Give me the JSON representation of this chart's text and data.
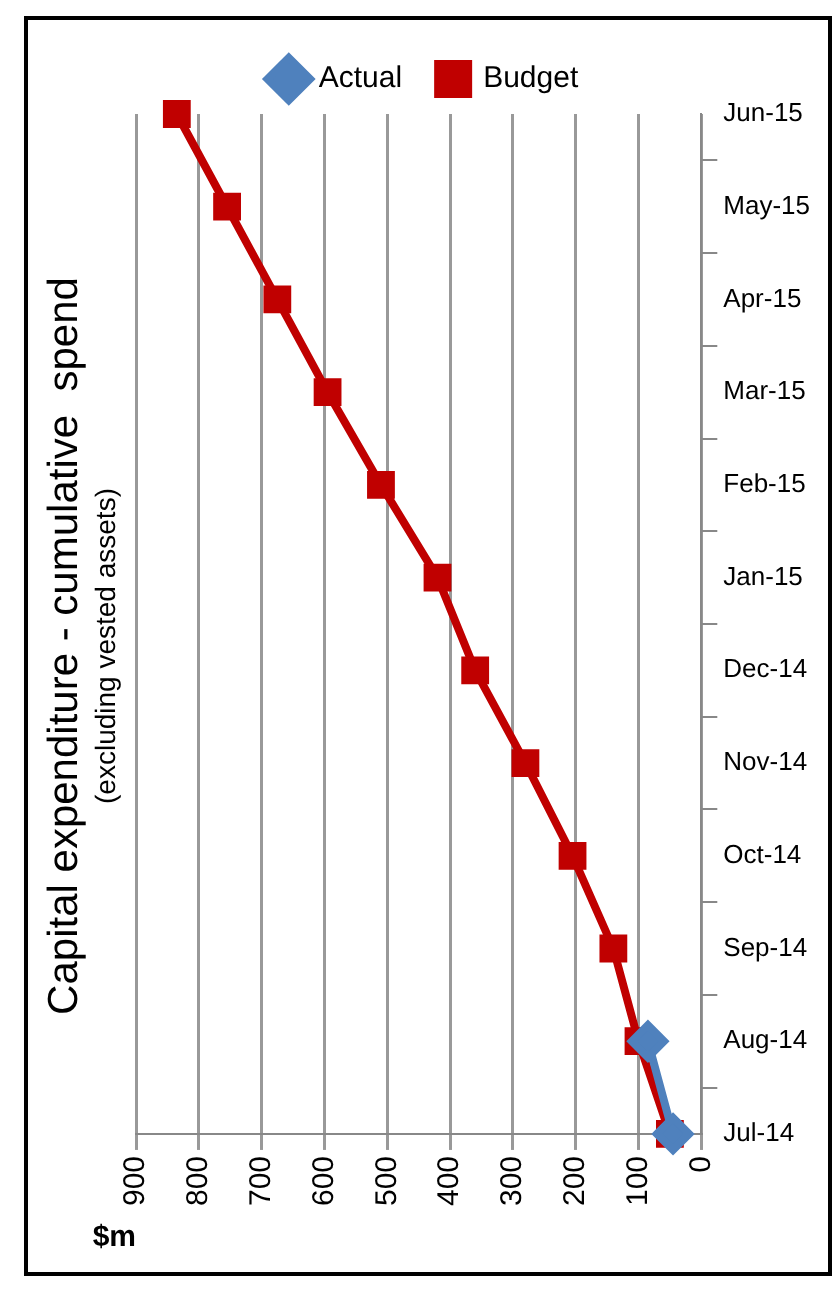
{
  "chart_data": {
    "type": "line",
    "orientation": "horizontal",
    "title": "Capital expenditure - cumulative  spend",
    "subtitle": "(excluding vested assets)",
    "xlabel": "$m",
    "categories": [
      "Jun-15",
      "May-15",
      "Apr-15",
      "Mar-15",
      "Feb-15",
      "Jan-15",
      "Dec-14",
      "Nov-14",
      "Oct-14",
      "Sep-14",
      "Aug-14",
      "Jul-14"
    ],
    "series": [
      {
        "name": "Budget",
        "color": "#c00000",
        "marker": "square",
        "values": [
          835,
          755,
          675,
          595,
          510,
          420,
          360,
          280,
          205,
          140,
          100,
          50
        ]
      },
      {
        "name": "Actual",
        "color": "#4f81bd",
        "marker": "diamond",
        "values": [
          null,
          null,
          null,
          null,
          null,
          null,
          null,
          null,
          null,
          null,
          85,
          45
        ]
      }
    ],
    "xlim": [
      900,
      0
    ],
    "xticks": [
      900,
      800,
      700,
      600,
      500,
      400,
      300,
      200,
      100,
      0
    ],
    "grid": "x",
    "legend": "top"
  }
}
